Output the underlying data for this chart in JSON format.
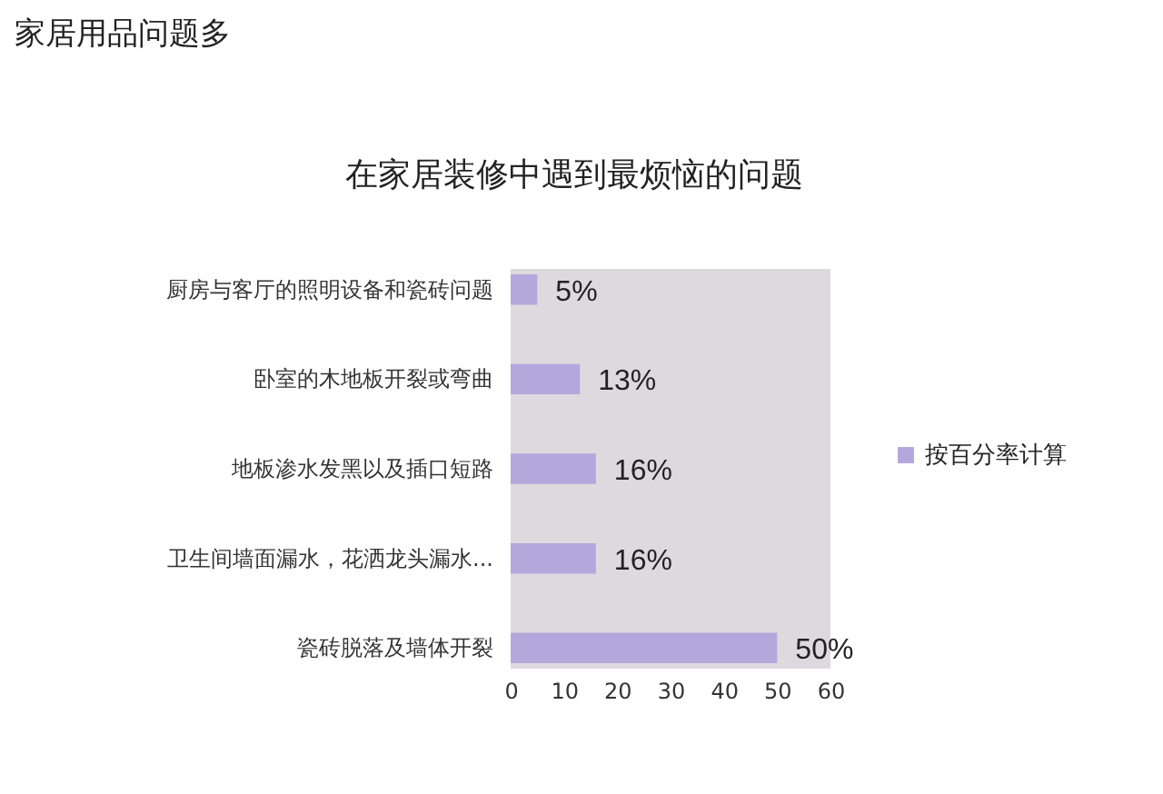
{
  "chart_data": {
    "type": "bar",
    "title": "家居用品问题多",
    "subtitle": "在家居装修中遇到最烦恼的问题",
    "orientation": "horizontal",
    "categories": [
      "厨房与客厅的照明设备和瓷砖问题",
      "卧室的木地板开裂或弯曲",
      "地板渗水发黑以及插口短路",
      "卫生间墙面漏水，花洒龙头漏水...",
      "瓷砖脱落及墙体开裂"
    ],
    "series": [
      {
        "name": "按百分率计算",
        "color": "#b4a7dc",
        "values": [
          5,
          13,
          16,
          16,
          50
        ],
        "value_labels": [
          "5%",
          "13%",
          "16%",
          "16%",
          "50%"
        ]
      }
    ],
    "xlim": [
      0,
      60
    ],
    "xticks": [
      0,
      10,
      20,
      30,
      40,
      50,
      60
    ],
    "legend": "right",
    "grid": false
  }
}
